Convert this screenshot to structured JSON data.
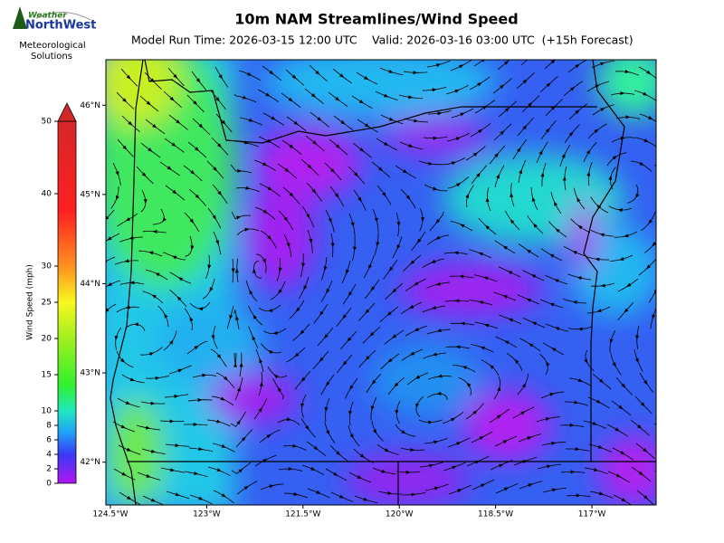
{
  "header": {
    "title": "10m NAM Streamlines/Wind Speed",
    "model_run": "Model Run Time: 2026-03-15 12:00 UTC",
    "valid": "Valid: 2026-03-16 03:00 UTC  (+15h Forecast)"
  },
  "logo": {
    "top": "Weather",
    "brand": "NorthWest",
    "line1": "Meteorological",
    "line2": "Solutions"
  },
  "colorbar": {
    "label": "Wind Speed (mph)",
    "lim": [
      0,
      50
    ],
    "ticks": [
      0,
      2,
      4,
      6,
      8,
      10,
      15,
      20,
      25,
      30,
      40,
      50
    ]
  },
  "map": {
    "lat_lim": [
      41.52,
      46.51
    ],
    "lon_lim": [
      -124.57,
      -116.0
    ],
    "lat_ticks": [
      {
        "value": 46,
        "label": "46°N"
      },
      {
        "value": 45,
        "label": "45°N"
      },
      {
        "value": 44,
        "label": "44°N"
      },
      {
        "value": 43,
        "label": "43°N"
      },
      {
        "value": 42,
        "label": "42°N"
      }
    ],
    "lon_ticks": [
      {
        "value": -124.5,
        "label": "124.5°W"
      },
      {
        "value": -123,
        "label": "123°W"
      },
      {
        "value": -121.5,
        "label": "121.5°W"
      },
      {
        "value": -120,
        "label": "120°W"
      },
      {
        "value": -118.5,
        "label": "118.5°W"
      },
      {
        "value": -117,
        "label": "117°W"
      }
    ]
  }
}
